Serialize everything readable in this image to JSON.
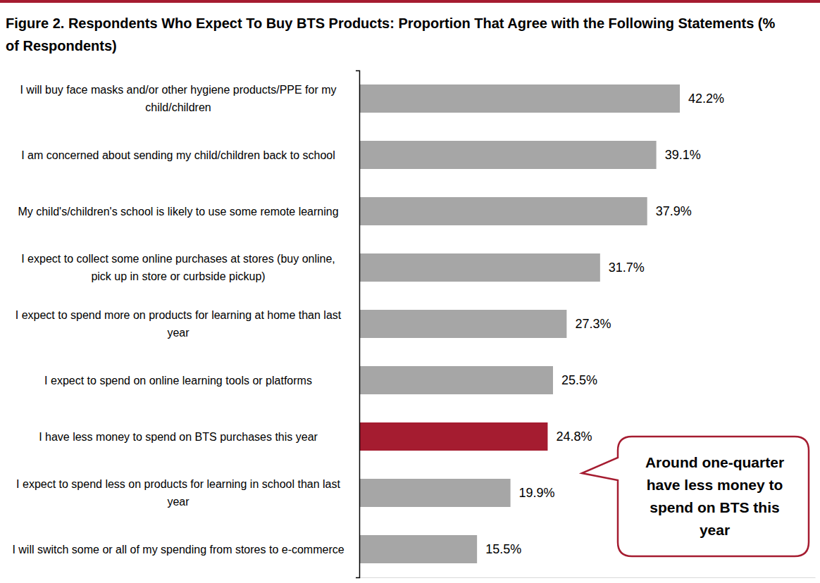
{
  "chart_data": {
    "type": "bar",
    "orientation": "horizontal",
    "title": "Figure 2. Respondents Who Expect To Buy BTS Products: Proportion That Agree with the Following Statements (% of Respondents)",
    "categories": [
      "I will buy face masks and/or other hygiene products/PPE for my child/children",
      "I am concerned about sending my child/children back to school",
      "My child's/children's school is likely to use some remote learning",
      "I expect to collect some online purchases at stores (buy online, pick up in store or curbside pickup)",
      "I expect to spend more on products for learning at home than last year",
      "I expect to spend on online learning tools or platforms",
      "I have less money to spend on BTS purchases this year",
      "I expect to spend less on products for learning in school than last year",
      "I will switch some or all of my spending from stores to e-commerce"
    ],
    "values": [
      42.2,
      39.1,
      37.9,
      31.7,
      27.3,
      25.5,
      24.8,
      19.9,
      15.5
    ],
    "value_labels": [
      "42.2%",
      "39.1%",
      "37.9%",
      "31.7%",
      "27.3%",
      "25.5%",
      "24.8%",
      "19.9%",
      "15.5%"
    ],
    "colors": [
      "#a6a6a6",
      "#a6a6a6",
      "#a6a6a6",
      "#a6a6a6",
      "#a6a6a6",
      "#a6a6a6",
      "#a51c30",
      "#a6a6a6",
      "#a6a6a6"
    ],
    "xlim": [
      0,
      60
    ],
    "grid": false,
    "data_labels": true,
    "tick_labels": "y",
    "annotations": [
      {
        "text": [
          "Around one-quarter",
          "have less money to",
          "spend on BTS this",
          "year"
        ]
      }
    ]
  }
}
